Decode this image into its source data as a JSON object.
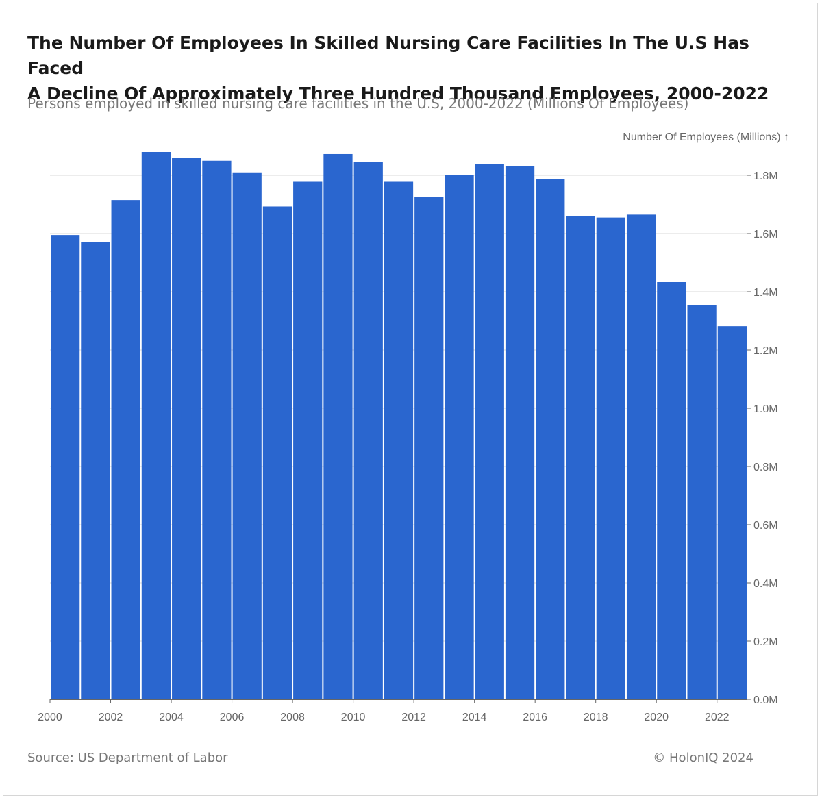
{
  "header": {
    "title_line1": "The Number Of Employees In Skilled Nursing Care Facilities In The U.S Has Faced",
    "title_line2": "A Decline Of Approximately Three Hundred Thousand Employees, 2000-2022",
    "subtitle": "Persons employed in skilled nursing care facilities in the U.S, 2000-2022 (Millions Of Employees)"
  },
  "footer": {
    "source": "Source: US Department of Labor",
    "copyright": "© HolonIQ 2024"
  },
  "chart_data": {
    "type": "bar",
    "title": "The Number Of Employees In Skilled Nursing Care Facilities In The U.S Has Faced A Decline Of Approximately Three Hundred Thousand Employees, 2000-2022",
    "subtitle": "Persons employed in skilled nursing care facilities in the U.S, 2000-2022 (Millions Of Employees)",
    "ylabel": "Number Of Employees (Millions) ↑",
    "xlabel": "",
    "categories": [
      "2000",
      "2001",
      "2002",
      "2003",
      "2004",
      "2005",
      "2006",
      "2007",
      "2008",
      "2009",
      "2010",
      "2011",
      "2012",
      "2013",
      "2014",
      "2015",
      "2016",
      "2017",
      "2018",
      "2019",
      "2020",
      "2021",
      "2022"
    ],
    "values": [
      1.595,
      1.57,
      1.715,
      1.88,
      1.86,
      1.85,
      1.81,
      1.693,
      1.78,
      1.873,
      1.847,
      1.78,
      1.727,
      1.8,
      1.838,
      1.832,
      1.788,
      1.66,
      1.655,
      1.665,
      1.433,
      1.353,
      1.282
    ],
    "ylim": [
      0,
      1.9
    ],
    "yticks": [
      0,
      0.2,
      0.4,
      0.6,
      0.8,
      1.0,
      1.2,
      1.4,
      1.6,
      1.8
    ],
    "ytick_labels": [
      "0.0M",
      "0.2M",
      "0.4M",
      "0.6M",
      "0.8M",
      "1.0M",
      "1.2M",
      "1.4M",
      "1.6M",
      "1.8M"
    ],
    "xticks": [
      "2000",
      "2002",
      "2004",
      "2006",
      "2008",
      "2010",
      "2012",
      "2014",
      "2016",
      "2018",
      "2020",
      "2022"
    ],
    "y_axis_position": "right",
    "grid": true,
    "bar_color": "#2a66cf",
    "grid_color": "#e6e6e6",
    "axis_color": "#666666"
  }
}
